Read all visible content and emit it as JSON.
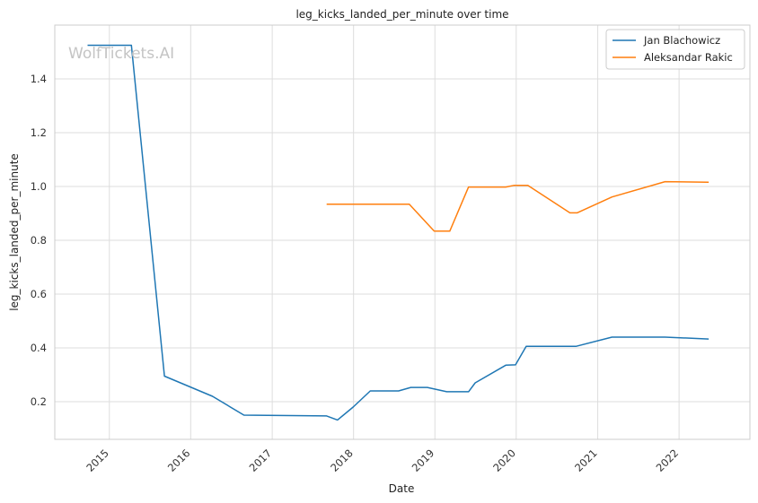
{
  "watermark": "WolfTickets.AI",
  "chart_data": {
    "type": "line",
    "title": "leg_kicks_landed_per_minute over time",
    "xlabel": "Date",
    "ylabel": "leg_kicks_landed_per_minute",
    "xlim": [
      "2014-05-01",
      "2022-11-15"
    ],
    "ylim": [
      0.06,
      1.6
    ],
    "x_ticks": [
      "2015",
      "2016",
      "2017",
      "2018",
      "2019",
      "2020",
      "2021",
      "2022"
    ],
    "y_ticks": [
      0.2,
      0.4,
      0.6,
      0.8,
      1.0,
      1.2,
      1.4
    ],
    "grid": true,
    "legend_position": "top-right",
    "series": [
      {
        "name": "Jan Blachowicz",
        "color": "#1f77b4",
        "points": [
          [
            "2014-09-25",
            1.525
          ],
          [
            "2015-04-10",
            1.525
          ],
          [
            "2015-09-05",
            0.295
          ],
          [
            "2016-04-08",
            0.22
          ],
          [
            "2016-08-27",
            0.15
          ],
          [
            "2017-09-02",
            0.147
          ],
          [
            "2017-10-21",
            0.132
          ],
          [
            "2017-12-30",
            0.18
          ],
          [
            "2018-03-17",
            0.24
          ],
          [
            "2018-07-22",
            0.24
          ],
          [
            "2018-09-15",
            0.253
          ],
          [
            "2018-11-28",
            0.253
          ],
          [
            "2019-02-23",
            0.237
          ],
          [
            "2019-06-01",
            0.237
          ],
          [
            "2019-07-01",
            0.27
          ],
          [
            "2019-11-16",
            0.336
          ],
          [
            "2019-12-29",
            0.337
          ],
          [
            "2020-02-15",
            0.406
          ],
          [
            "2020-09-27",
            0.406
          ],
          [
            "2021-03-06",
            0.44
          ],
          [
            "2021-10-30",
            0.44
          ],
          [
            "2022-05-14",
            0.433
          ]
        ]
      },
      {
        "name": "Aleksandar Rakic",
        "color": "#ff7f0e",
        "points": [
          [
            "2017-09-02",
            0.934
          ],
          [
            "2018-09-08",
            0.934
          ],
          [
            "2018-12-29",
            0.834
          ],
          [
            "2019-03-09",
            0.834
          ],
          [
            "2019-06-01",
            0.998
          ],
          [
            "2019-11-15",
            0.998
          ],
          [
            "2019-12-21",
            1.004
          ],
          [
            "2020-02-22",
            1.004
          ],
          [
            "2020-08-29",
            0.902
          ],
          [
            "2020-09-30",
            0.902
          ],
          [
            "2021-03-06",
            0.961
          ],
          [
            "2021-10-30",
            1.018
          ],
          [
            "2022-05-14",
            1.016
          ]
        ]
      }
    ]
  }
}
